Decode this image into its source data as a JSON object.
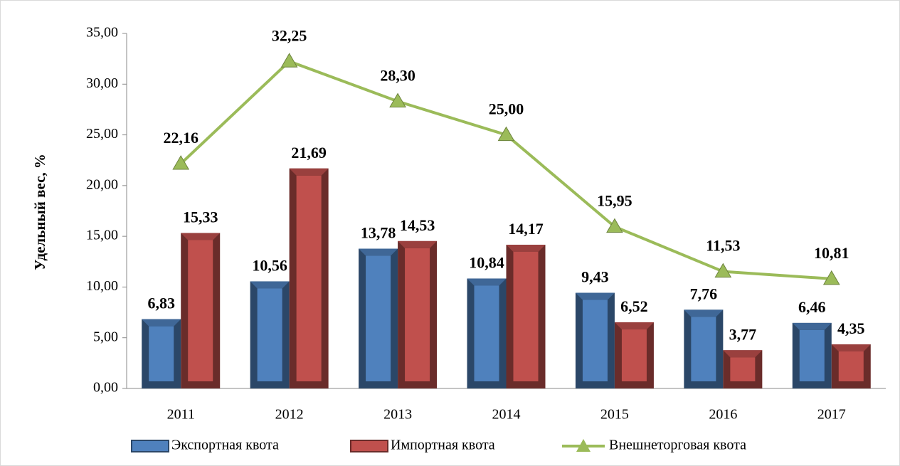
{
  "chart_data": {
    "type": "bar",
    "y_label": "Удельный вес, %",
    "categories": [
      "2011",
      "2012",
      "2013",
      "2014",
      "2015",
      "2016",
      "2017"
    ],
    "series": [
      {
        "name": "Экспортная квота",
        "color": "#4f81bd",
        "values": [
          6.83,
          10.56,
          13.78,
          10.84,
          9.43,
          7.76,
          6.46
        ],
        "value_labels": [
          "6,83",
          "10,56",
          "13,78",
          "10,84",
          "9,43",
          "7,76",
          "6,46"
        ]
      },
      {
        "name": "Импортная квота",
        "color": "#c0504d",
        "values": [
          15.33,
          21.69,
          14.53,
          14.17,
          6.52,
          3.77,
          4.35
        ],
        "value_labels": [
          "15,33",
          "21,69",
          "14,53",
          "14,17",
          "6,52",
          "3,77",
          "4,35"
        ]
      },
      {
        "name": "Внешнеторговая квота",
        "type": "line",
        "color": "#9bbb59",
        "values": [
          22.16,
          32.25,
          28.3,
          25.0,
          15.95,
          11.53,
          10.81
        ],
        "value_labels": [
          "22,16",
          "32,25",
          "28,30",
          "25,00",
          "15,95",
          "11,53",
          "10,81"
        ]
      }
    ],
    "ylim": [
      0,
      35
    ],
    "yticks": [
      {
        "value": 0,
        "label": "0,00"
      },
      {
        "value": 5,
        "label": "5,00"
      },
      {
        "value": 10,
        "label": "10,00"
      },
      {
        "value": 15,
        "label": "15,00"
      },
      {
        "value": 20,
        "label": "20,00"
      },
      {
        "value": 25,
        "label": "25,00"
      },
      {
        "value": 30,
        "label": "30,00"
      },
      {
        "value": 35,
        "label": "35,00"
      }
    ],
    "legend": "bottom"
  }
}
